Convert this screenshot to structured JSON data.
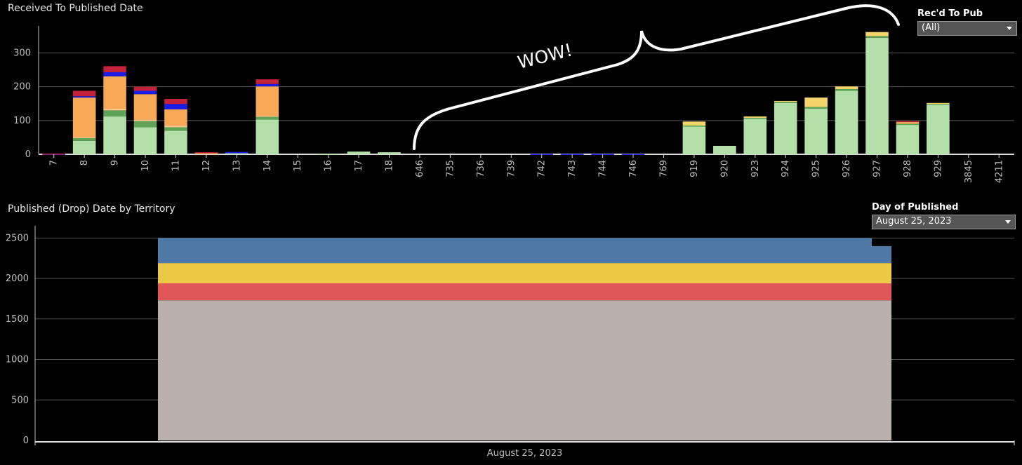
{
  "charts": {
    "top_title": "Received To Published Date",
    "bottom_title": "Published (Drop) Date by Territory"
  },
  "filters": {
    "rec_to_pub": {
      "label": "Rec'd To Pub",
      "value": "(All)"
    },
    "day_of_published": {
      "label": "Day of Published",
      "value": "August 25, 2023"
    }
  },
  "annotation": {
    "text": "WOW!"
  },
  "colors": {
    "light_green": "#b3e0a8",
    "dark_green": "#5ea356",
    "orange": "#f8a955",
    "light_orange": "#fcc790",
    "blue": "#1c1ce6",
    "crimson": "#c4213a",
    "yellow": "#f3d56b",
    "steel_blue": "#4e79a7",
    "gold": "#edc948",
    "red": "#e15759",
    "taupe": "#bab0ac"
  },
  "chart_data": [
    {
      "type": "bar",
      "stacked": true,
      "title": "Received To Published Date",
      "ylim": [
        0,
        380
      ],
      "yticks": [
        0,
        100,
        200,
        300
      ],
      "grid": true,
      "categories": [
        "7",
        "8",
        "9",
        "10",
        "11",
        "12",
        "13",
        "14",
        "15",
        "16",
        "17",
        "18",
        "646",
        "735",
        "736",
        "739",
        "742",
        "743",
        "744",
        "746",
        "769",
        "919",
        "920",
        "923",
        "924",
        "925",
        "926",
        "927",
        "928",
        "929",
        "3845",
        "4211"
      ],
      "series": [
        {
          "color": "light_green",
          "values": [
            0,
            40,
            112,
            80,
            70,
            0,
            3,
            103,
            0,
            2,
            8,
            6,
            0,
            0,
            0,
            0,
            0,
            0,
            0,
            0,
            0,
            82,
            25,
            105,
            152,
            135,
            188,
            345,
            88,
            147,
            0,
            0
          ]
        },
        {
          "color": "dark_green",
          "values": [
            0,
            8,
            18,
            18,
            10,
            0,
            0,
            8,
            0,
            0,
            0,
            0,
            0,
            0,
            0,
            0,
            0,
            0,
            0,
            0,
            0,
            3,
            0,
            3,
            3,
            5,
            5,
            5,
            2,
            3,
            0,
            0
          ]
        },
        {
          "color": "light_orange",
          "values": [
            0,
            3,
            5,
            5,
            5,
            0,
            0,
            3,
            0,
            0,
            0,
            0,
            0,
            0,
            0,
            0,
            0,
            0,
            0,
            0,
            0,
            0,
            0,
            0,
            0,
            0,
            0,
            0,
            0,
            0,
            0,
            0
          ]
        },
        {
          "color": "orange",
          "values": [
            0,
            117,
            96,
            75,
            48,
            3,
            0,
            87,
            0,
            0,
            0,
            0,
            0,
            0,
            0,
            0,
            0,
            0,
            0,
            0,
            0,
            0,
            0,
            0,
            0,
            0,
            0,
            0,
            4,
            0,
            0,
            0
          ]
        },
        {
          "color": "yellow",
          "values": [
            0,
            0,
            0,
            0,
            0,
            2,
            0,
            0,
            0,
            0,
            0,
            0,
            0,
            0,
            0,
            0,
            0,
            0,
            0,
            0,
            0,
            12,
            0,
            4,
            3,
            28,
            8,
            12,
            2,
            2,
            0,
            0
          ]
        },
        {
          "color": "blue",
          "values": [
            1,
            4,
            12,
            10,
            16,
            0,
            4,
            7,
            0,
            0,
            0,
            0,
            0,
            0,
            0,
            0,
            1,
            1,
            1,
            1,
            0,
            0,
            0,
            0,
            0,
            0,
            0,
            0,
            0,
            0,
            0,
            0
          ]
        },
        {
          "color": "crimson",
          "values": [
            1,
            16,
            18,
            12,
            15,
            1,
            0,
            14,
            0,
            0,
            0,
            0,
            0,
            0,
            0,
            0,
            0,
            0,
            0,
            0,
            0,
            0,
            0,
            0,
            0,
            0,
            0,
            0,
            2,
            0,
            0,
            0
          ]
        }
      ]
    },
    {
      "type": "area",
      "stacked": true,
      "title": "Published (Drop) Date by Territory",
      "ylim": [
        0,
        2650
      ],
      "yticks": [
        0,
        500,
        1000,
        1500,
        2000,
        2500
      ],
      "grid": true,
      "x_label": "August 25, 2023",
      "series": [
        {
          "color": "taupe",
          "value": 1730
        },
        {
          "color": "red",
          "value": 210
        },
        {
          "color": "gold",
          "value": 250
        },
        {
          "color": "steel_blue",
          "value": 310,
          "end_value": 210
        }
      ]
    }
  ]
}
